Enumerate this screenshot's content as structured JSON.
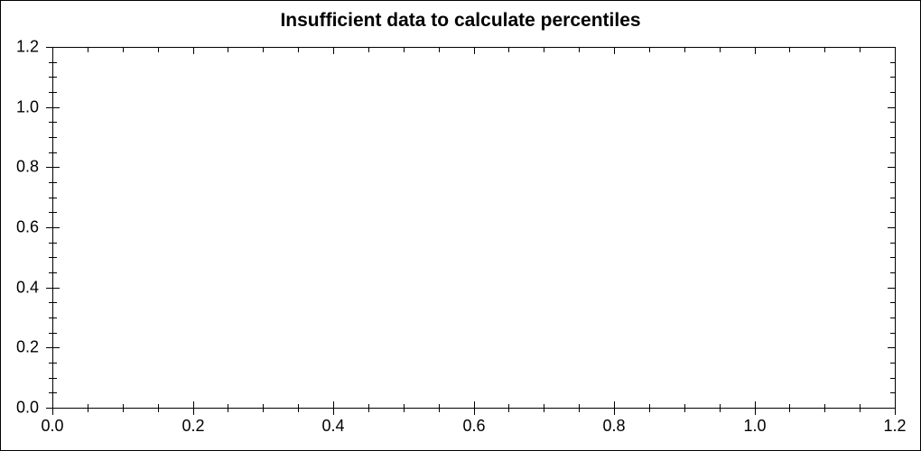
{
  "window": {
    "background_color": "#ffffff",
    "frame_color": "#000000"
  },
  "chart_data": {
    "type": "scatter",
    "title": "Insufficient data to calculate percentiles",
    "series": [],
    "xlabel": "",
    "ylabel": "",
    "xlim": [
      0.0,
      1.2
    ],
    "ylim": [
      0.0,
      1.2
    ],
    "x_ticks": [
      0.0,
      0.2,
      0.4,
      0.6,
      0.8,
      1.0,
      1.2
    ],
    "x_tick_labels": [
      "0.0",
      "0.2",
      "0.4",
      "0.6",
      "0.8",
      "1.0",
      "1.2"
    ],
    "y_ticks": [
      0.0,
      0.2,
      0.4,
      0.6,
      0.8,
      1.0,
      1.2
    ],
    "y_tick_labels": [
      "0.0",
      "0.2",
      "0.4",
      "0.6",
      "0.8",
      "1.0",
      "1.2"
    ],
    "minor_tick_step": 0.05,
    "grid": false,
    "legend": null,
    "frame": true,
    "colors": {
      "axis": "#000000",
      "text": "#000000",
      "plot_background": "#ffffff"
    }
  }
}
